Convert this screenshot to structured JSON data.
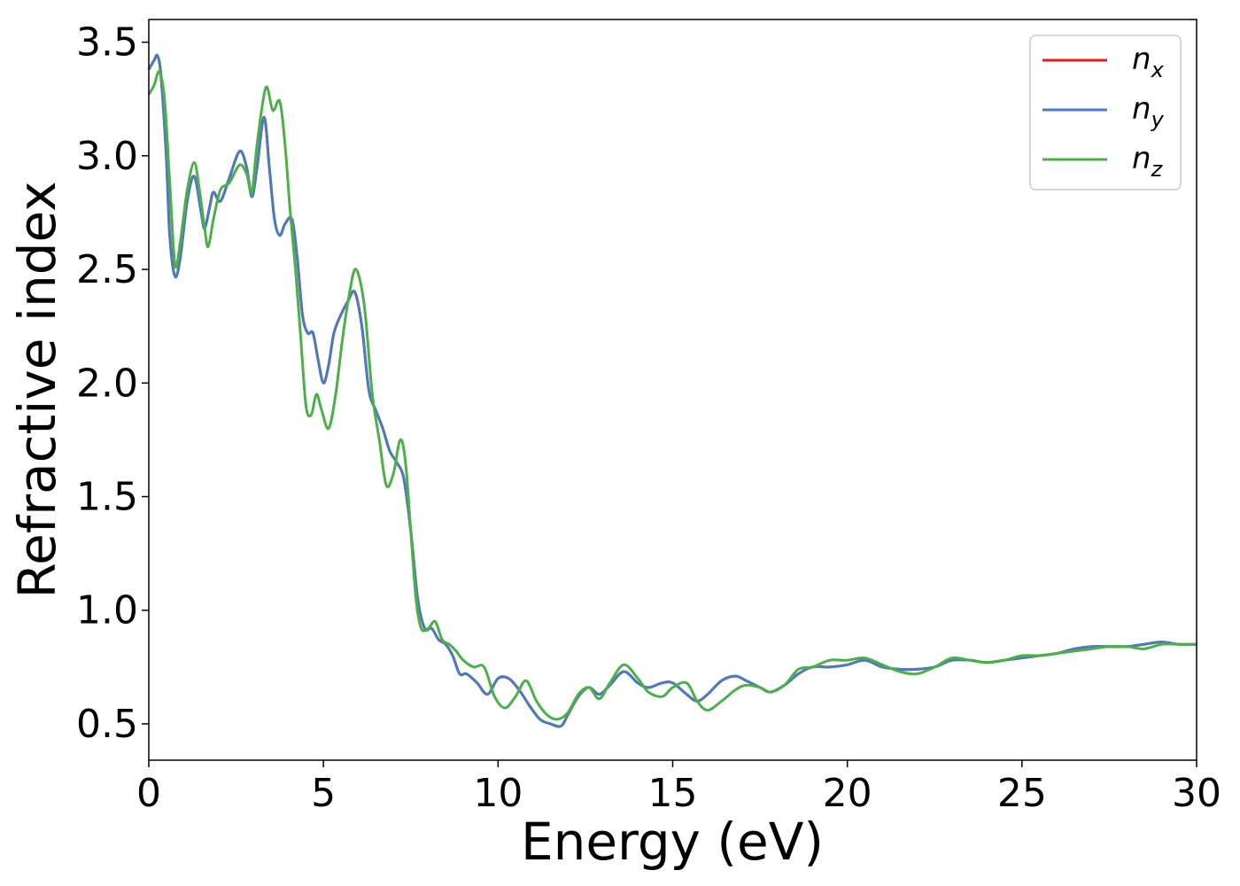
{
  "chart_data": {
    "type": "line",
    "xlabel": "Energy (eV)",
    "ylabel": "Refractive index",
    "xlim": [
      0,
      30
    ],
    "ylim": [
      0.34,
      3.6
    ],
    "xticks": [
      0,
      5,
      10,
      15,
      20,
      25,
      30
    ],
    "xtick_labels": [
      "0",
      "5",
      "10",
      "15",
      "20",
      "25",
      "30"
    ],
    "yticks": [
      0.5,
      1.0,
      1.5,
      2.0,
      2.5,
      3.0,
      3.5
    ],
    "ytick_labels": [
      "0.5",
      "1.0",
      "1.5",
      "2.0",
      "2.5",
      "3.0",
      "3.5"
    ],
    "grid": false,
    "legend_position": "top-right",
    "series": [
      {
        "name": "n_x",
        "label_base": "n",
        "label_sub": "x",
        "color": "#e41a1c",
        "x": [
          0,
          0.15,
          0.25,
          0.35,
          0.5,
          0.6,
          0.75,
          0.9,
          1.1,
          1.3,
          1.5,
          1.6,
          1.75,
          1.85,
          2.05,
          2.3,
          2.6,
          2.8,
          2.95,
          3.1,
          3.3,
          3.45,
          3.6,
          3.75,
          3.9,
          4.1,
          4.25,
          4.4,
          4.55,
          4.7,
          4.85,
          5.0,
          5.15,
          5.3,
          5.5,
          5.7,
          5.9,
          6.1,
          6.3,
          6.5,
          6.7,
          6.9,
          7.1,
          7.3,
          7.5,
          7.7,
          7.9,
          8.1,
          8.3,
          8.5,
          8.7,
          8.9,
          9.1,
          9.4,
          9.7,
          10.0,
          10.3,
          10.6,
          10.9,
          11.2,
          11.5,
          11.8,
          12.0,
          12.3,
          12.6,
          12.9,
          13.2,
          13.6,
          14.0,
          14.3,
          14.7,
          15.0,
          15.4,
          15.7,
          16.0,
          16.4,
          16.8,
          17.1,
          17.5,
          17.8,
          18.2,
          18.6,
          19.0,
          19.5,
          20.0,
          20.5,
          21.0,
          21.5,
          22.0,
          22.5,
          23.0,
          23.5,
          24.0,
          24.5,
          25.0,
          25.5,
          26.0,
          26.5,
          27.0,
          27.5,
          28.0,
          28.5,
          29.0,
          29.5,
          30.0
        ],
        "values": [
          3.38,
          3.42,
          3.44,
          3.35,
          3.0,
          2.65,
          2.47,
          2.55,
          2.8,
          2.91,
          2.75,
          2.68,
          2.78,
          2.84,
          2.8,
          2.9,
          3.02,
          2.95,
          2.82,
          2.95,
          3.17,
          2.95,
          2.72,
          2.65,
          2.7,
          2.72,
          2.55,
          2.3,
          2.22,
          2.22,
          2.1,
          2.0,
          2.08,
          2.22,
          2.3,
          2.36,
          2.4,
          2.25,
          1.97,
          1.88,
          1.8,
          1.7,
          1.65,
          1.58,
          1.35,
          1.05,
          0.92,
          0.92,
          0.87,
          0.85,
          0.8,
          0.72,
          0.72,
          0.68,
          0.63,
          0.7,
          0.7,
          0.65,
          0.58,
          0.52,
          0.5,
          0.49,
          0.54,
          0.62,
          0.66,
          0.63,
          0.67,
          0.73,
          0.68,
          0.66,
          0.68,
          0.68,
          0.63,
          0.6,
          0.63,
          0.69,
          0.71,
          0.69,
          0.66,
          0.64,
          0.67,
          0.72,
          0.75,
          0.75,
          0.76,
          0.78,
          0.75,
          0.74,
          0.74,
          0.75,
          0.78,
          0.78,
          0.77,
          0.78,
          0.79,
          0.8,
          0.81,
          0.83,
          0.84,
          0.84,
          0.84,
          0.85,
          0.86,
          0.85,
          0.85
        ]
      },
      {
        "name": "n_y",
        "label_base": "n",
        "label_sub": "y",
        "color": "#4a7dbc",
        "x": [
          0,
          0.15,
          0.25,
          0.35,
          0.5,
          0.6,
          0.75,
          0.9,
          1.1,
          1.3,
          1.5,
          1.6,
          1.75,
          1.85,
          2.05,
          2.3,
          2.6,
          2.8,
          2.95,
          3.1,
          3.3,
          3.45,
          3.6,
          3.75,
          3.9,
          4.1,
          4.25,
          4.4,
          4.55,
          4.7,
          4.85,
          5.0,
          5.15,
          5.3,
          5.5,
          5.7,
          5.9,
          6.1,
          6.3,
          6.5,
          6.7,
          6.9,
          7.1,
          7.3,
          7.5,
          7.7,
          7.9,
          8.1,
          8.3,
          8.5,
          8.7,
          8.9,
          9.1,
          9.4,
          9.7,
          10.0,
          10.3,
          10.6,
          10.9,
          11.2,
          11.5,
          11.8,
          12.0,
          12.3,
          12.6,
          12.9,
          13.2,
          13.6,
          14.0,
          14.3,
          14.7,
          15.0,
          15.4,
          15.7,
          16.0,
          16.4,
          16.8,
          17.1,
          17.5,
          17.8,
          18.2,
          18.6,
          19.0,
          19.5,
          20.0,
          20.5,
          21.0,
          21.5,
          22.0,
          22.5,
          23.0,
          23.5,
          24.0,
          24.5,
          25.0,
          25.5,
          26.0,
          26.5,
          27.0,
          27.5,
          28.0,
          28.5,
          29.0,
          29.5,
          30.0
        ],
        "values": [
          3.38,
          3.42,
          3.44,
          3.35,
          3.0,
          2.65,
          2.47,
          2.55,
          2.8,
          2.91,
          2.75,
          2.68,
          2.78,
          2.84,
          2.8,
          2.9,
          3.02,
          2.95,
          2.82,
          2.95,
          3.17,
          2.95,
          2.72,
          2.65,
          2.7,
          2.72,
          2.55,
          2.3,
          2.22,
          2.22,
          2.1,
          2.0,
          2.08,
          2.22,
          2.3,
          2.36,
          2.4,
          2.25,
          1.97,
          1.88,
          1.8,
          1.7,
          1.65,
          1.58,
          1.35,
          1.05,
          0.92,
          0.92,
          0.87,
          0.85,
          0.8,
          0.72,
          0.72,
          0.68,
          0.63,
          0.7,
          0.7,
          0.65,
          0.58,
          0.52,
          0.5,
          0.49,
          0.54,
          0.62,
          0.66,
          0.63,
          0.67,
          0.73,
          0.68,
          0.66,
          0.68,
          0.68,
          0.63,
          0.6,
          0.63,
          0.69,
          0.71,
          0.69,
          0.66,
          0.64,
          0.67,
          0.72,
          0.75,
          0.75,
          0.76,
          0.78,
          0.75,
          0.74,
          0.74,
          0.75,
          0.78,
          0.78,
          0.77,
          0.78,
          0.79,
          0.8,
          0.81,
          0.83,
          0.84,
          0.84,
          0.84,
          0.85,
          0.86,
          0.85,
          0.85
        ]
      },
      {
        "name": "n_z",
        "label_base": "n",
        "label_sub": "z",
        "color": "#4daf4a",
        "x": [
          0,
          0.15,
          0.3,
          0.45,
          0.6,
          0.75,
          0.9,
          1.1,
          1.3,
          1.45,
          1.6,
          1.7,
          1.85,
          2.05,
          2.3,
          2.6,
          2.8,
          2.95,
          3.1,
          3.35,
          3.55,
          3.75,
          3.9,
          4.05,
          4.2,
          4.35,
          4.5,
          4.65,
          4.8,
          4.95,
          5.15,
          5.35,
          5.55,
          5.75,
          5.9,
          6.05,
          6.2,
          6.4,
          6.6,
          6.8,
          7.0,
          7.2,
          7.35,
          7.5,
          7.65,
          7.8,
          8.0,
          8.2,
          8.4,
          8.6,
          8.8,
          9.0,
          9.3,
          9.6,
          9.9,
          10.2,
          10.5,
          10.8,
          11.1,
          11.4,
          11.7,
          12.0,
          12.3,
          12.6,
          12.9,
          13.2,
          13.6,
          14.0,
          14.3,
          14.7,
          15.0,
          15.4,
          15.7,
          16.0,
          16.4,
          16.8,
          17.1,
          17.5,
          17.8,
          18.2,
          18.6,
          19.0,
          19.5,
          20.0,
          20.5,
          21.0,
          21.5,
          22.0,
          22.5,
          23.0,
          23.5,
          24.0,
          24.5,
          25.0,
          25.5,
          26.0,
          26.5,
          27.0,
          27.5,
          28.0,
          28.5,
          29.0,
          29.5,
          30.0
        ],
        "values": [
          3.27,
          3.31,
          3.37,
          3.25,
          2.88,
          2.52,
          2.62,
          2.85,
          2.97,
          2.85,
          2.68,
          2.6,
          2.72,
          2.85,
          2.88,
          2.96,
          2.92,
          2.84,
          3.05,
          3.3,
          3.2,
          3.24,
          3.05,
          2.75,
          2.5,
          2.2,
          1.9,
          1.86,
          1.95,
          1.88,
          1.8,
          1.95,
          2.2,
          2.4,
          2.5,
          2.45,
          2.3,
          1.95,
          1.75,
          1.55,
          1.6,
          1.75,
          1.65,
          1.35,
          1.05,
          0.92,
          0.92,
          0.95,
          0.87,
          0.85,
          0.82,
          0.78,
          0.75,
          0.75,
          0.62,
          0.57,
          0.62,
          0.69,
          0.6,
          0.54,
          0.52,
          0.55,
          0.63,
          0.66,
          0.61,
          0.68,
          0.76,
          0.7,
          0.64,
          0.62,
          0.66,
          0.68,
          0.6,
          0.56,
          0.6,
          0.65,
          0.67,
          0.66,
          0.64,
          0.67,
          0.74,
          0.75,
          0.78,
          0.78,
          0.79,
          0.76,
          0.73,
          0.72,
          0.75,
          0.79,
          0.78,
          0.77,
          0.78,
          0.8,
          0.8,
          0.81,
          0.82,
          0.83,
          0.84,
          0.84,
          0.83,
          0.85,
          0.85,
          0.85
        ]
      }
    ]
  }
}
